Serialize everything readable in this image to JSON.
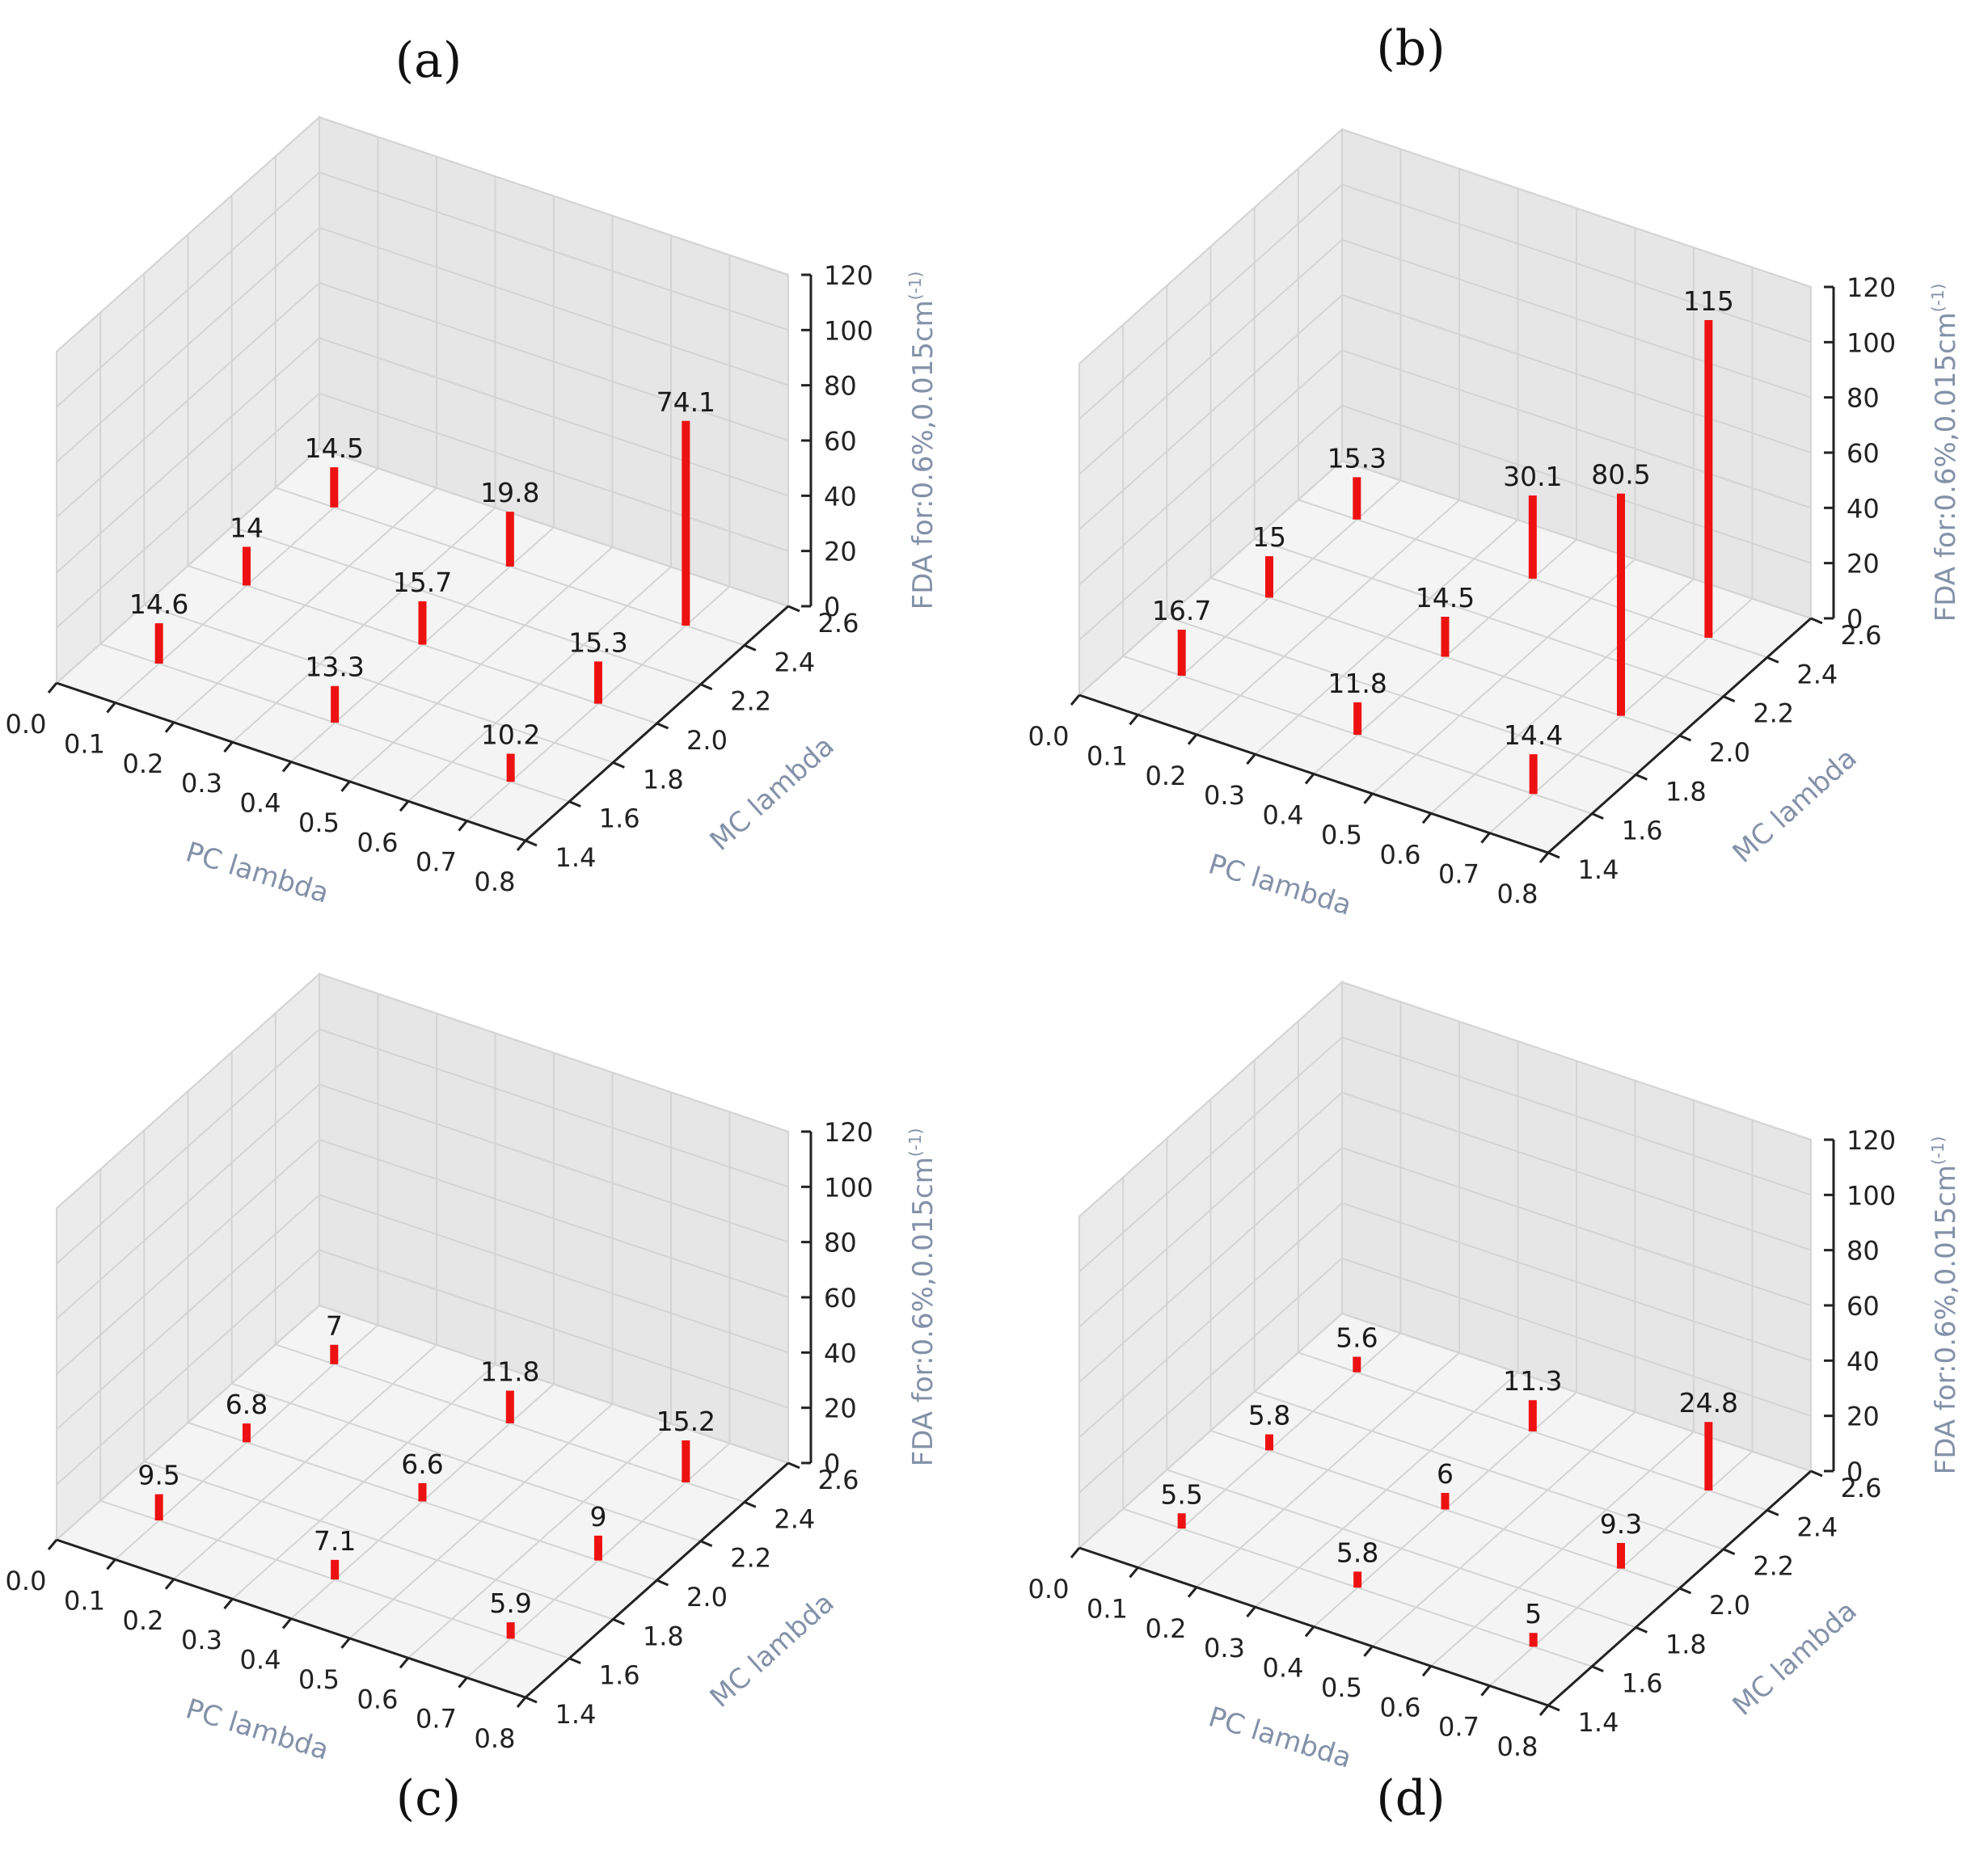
{
  "chart_data": [
    {
      "type": "bar3d",
      "panel_label": "(a)",
      "xlabel": "PC lambda",
      "ylabel": "MC lambda",
      "zlabel": "FDA for:0.6%,0.015cm",
      "zlabel_sup": "(-1)",
      "x_ticks": [
        "0.0",
        "0.1",
        "0.2",
        "0.3",
        "0.4",
        "0.5",
        "0.6",
        "0.7",
        "0.8"
      ],
      "y_ticks": [
        "1.4",
        "1.6",
        "1.8",
        "2.0",
        "2.2",
        "2.4",
        "2.6"
      ],
      "z_ticks": [
        "0",
        "20",
        "40",
        "60",
        "80",
        "100",
        "120"
      ],
      "xlim": [
        0,
        0.8
      ],
      "ylim": [
        1.4,
        2.6
      ],
      "zlim": [
        0,
        120
      ],
      "bar_color": "#ee1111",
      "points": [
        {
          "x": 0.1,
          "y": 1.6,
          "value": 14.6,
          "label": "14.6"
        },
        {
          "x": 0.1,
          "y": 2.0,
          "value": 14,
          "label": "14"
        },
        {
          "x": 0.1,
          "y": 2.4,
          "value": 14.5,
          "label": "14.5"
        },
        {
          "x": 0.4,
          "y": 1.6,
          "value": 13.3,
          "label": "13.3"
        },
        {
          "x": 0.4,
          "y": 2.0,
          "value": 15.7,
          "label": "15.7"
        },
        {
          "x": 0.4,
          "y": 2.4,
          "value": 19.8,
          "label": "19.8"
        },
        {
          "x": 0.7,
          "y": 1.6,
          "value": 10.2,
          "label": "10.2"
        },
        {
          "x": 0.7,
          "y": 2.0,
          "value": 15.3,
          "label": "15.3"
        },
        {
          "x": 0.7,
          "y": 2.4,
          "value": 74.1,
          "label": "74.1"
        }
      ]
    },
    {
      "type": "bar3d",
      "panel_label": "(b)",
      "xlabel": "PC lambda",
      "ylabel": "MC lambda",
      "zlabel": "FDA for:0.6%,0.015cm",
      "zlabel_sup": "(-1)",
      "x_ticks": [
        "0.0",
        "0.1",
        "0.2",
        "0.3",
        "0.4",
        "0.5",
        "0.6",
        "0.7",
        "0.8"
      ],
      "y_ticks": [
        "1.4",
        "1.6",
        "1.8",
        "2.0",
        "2.2",
        "2.4",
        "2.6"
      ],
      "z_ticks": [
        "0",
        "20",
        "40",
        "60",
        "80",
        "100",
        "120"
      ],
      "xlim": [
        0,
        0.8
      ],
      "ylim": [
        1.4,
        2.6
      ],
      "zlim": [
        0,
        120
      ],
      "bar_color": "#ee1111",
      "points": [
        {
          "x": 0.1,
          "y": 1.6,
          "value": 16.7,
          "label": "16.7"
        },
        {
          "x": 0.1,
          "y": 2.0,
          "value": 15,
          "label": "15"
        },
        {
          "x": 0.1,
          "y": 2.4,
          "value": 15.3,
          "label": "15.3"
        },
        {
          "x": 0.4,
          "y": 1.6,
          "value": 11.8,
          "label": "11.8"
        },
        {
          "x": 0.4,
          "y": 2.0,
          "value": 14.5,
          "label": "14.5"
        },
        {
          "x": 0.4,
          "y": 2.4,
          "value": 30.1,
          "label": "30.1"
        },
        {
          "x": 0.7,
          "y": 1.6,
          "value": 14.4,
          "label": "14.4"
        },
        {
          "x": 0.7,
          "y": 2.0,
          "value": 80.5,
          "label": "80.5"
        },
        {
          "x": 0.7,
          "y": 2.4,
          "value": 115,
          "label": "115"
        }
      ]
    },
    {
      "type": "bar3d",
      "panel_label": "(c)",
      "xlabel": "PC lambda",
      "ylabel": "MC lambda",
      "zlabel": "FDA for:0.6%,0.015cm",
      "zlabel_sup": "(-1)",
      "x_ticks": [
        "0.0",
        "0.1",
        "0.2",
        "0.3",
        "0.4",
        "0.5",
        "0.6",
        "0.7",
        "0.8"
      ],
      "y_ticks": [
        "1.4",
        "1.6",
        "1.8",
        "2.0",
        "2.2",
        "2.4",
        "2.6"
      ],
      "z_ticks": [
        "0",
        "20",
        "40",
        "60",
        "80",
        "100",
        "120"
      ],
      "xlim": [
        0,
        0.8
      ],
      "ylim": [
        1.4,
        2.6
      ],
      "zlim": [
        0,
        120
      ],
      "bar_color": "#ee1111",
      "points": [
        {
          "x": 0.1,
          "y": 1.6,
          "value": 9.5,
          "label": "9.5"
        },
        {
          "x": 0.1,
          "y": 2.0,
          "value": 6.8,
          "label": "6.8"
        },
        {
          "x": 0.1,
          "y": 2.4,
          "value": 7,
          "label": "7"
        },
        {
          "x": 0.4,
          "y": 1.6,
          "value": 7.1,
          "label": "7.1"
        },
        {
          "x": 0.4,
          "y": 2.0,
          "value": 6.6,
          "label": "6.6"
        },
        {
          "x": 0.4,
          "y": 2.4,
          "value": 11.8,
          "label": "11.8"
        },
        {
          "x": 0.7,
          "y": 1.6,
          "value": 5.9,
          "label": "5.9"
        },
        {
          "x": 0.7,
          "y": 2.0,
          "value": 9,
          "label": "9"
        },
        {
          "x": 0.7,
          "y": 2.4,
          "value": 15.2,
          "label": "15.2"
        }
      ]
    },
    {
      "type": "bar3d",
      "panel_label": "(d)",
      "xlabel": "PC lambda",
      "ylabel": "MC lambda",
      "zlabel": "FDA for:0.6%,0.015cm",
      "zlabel_sup": "(-1)",
      "x_ticks": [
        "0.0",
        "0.1",
        "0.2",
        "0.3",
        "0.4",
        "0.5",
        "0.6",
        "0.7",
        "0.8"
      ],
      "y_ticks": [
        "1.4",
        "1.6",
        "1.8",
        "2.0",
        "2.2",
        "2.4",
        "2.6"
      ],
      "z_ticks": [
        "0",
        "20",
        "40",
        "60",
        "80",
        "100",
        "120"
      ],
      "xlim": [
        0,
        0.8
      ],
      "ylim": [
        1.4,
        2.6
      ],
      "zlim": [
        0,
        120
      ],
      "bar_color": "#ee1111",
      "points": [
        {
          "x": 0.1,
          "y": 1.6,
          "value": 5.5,
          "label": "5.5"
        },
        {
          "x": 0.1,
          "y": 2.0,
          "value": 5.8,
          "label": "5.8"
        },
        {
          "x": 0.1,
          "y": 2.4,
          "value": 5.6,
          "label": "5.6"
        },
        {
          "x": 0.4,
          "y": 1.6,
          "value": 5.8,
          "label": "5.8"
        },
        {
          "x": 0.4,
          "y": 2.0,
          "value": 6,
          "label": "6"
        },
        {
          "x": 0.4,
          "y": 2.4,
          "value": 11.3,
          "label": "11.3"
        },
        {
          "x": 0.7,
          "y": 1.6,
          "value": 5,
          "label": "5"
        },
        {
          "x": 0.7,
          "y": 2.0,
          "value": 9.3,
          "label": "9.3"
        },
        {
          "x": 0.7,
          "y": 2.4,
          "value": 24.8,
          "label": "24.8"
        }
      ]
    }
  ]
}
